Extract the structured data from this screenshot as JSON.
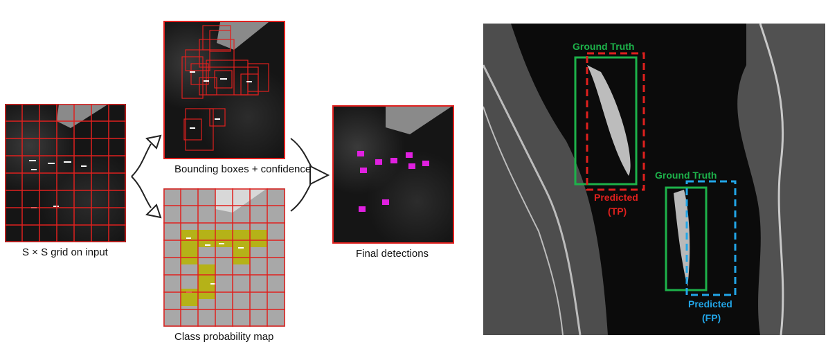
{
  "left_figure": {
    "grid_caption": "S × S grid on input",
    "bbox_caption": "Bounding boxes + confidence",
    "classprob_caption": "Class probability map",
    "final_caption": "Final detections"
  },
  "right_figure": {
    "gt_label_1": "Ground Truth",
    "pred_label_1": "Predicted",
    "pred_type_1": "(TP)",
    "gt_label_2": "Ground Truth",
    "pred_label_2": "Predicted",
    "pred_type_2": "(FP)"
  },
  "colors": {
    "grid_red": "#e0201e",
    "ground_truth": "#1db24a",
    "predicted_tp": "#e0201e",
    "predicted_fp": "#22a6e8",
    "class_highlight": "#b8b400",
    "detection_magenta": "#e020e0"
  }
}
